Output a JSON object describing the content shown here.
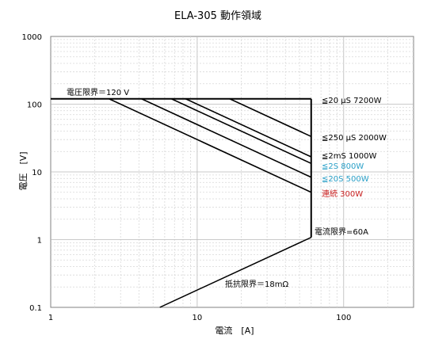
{
  "chart_data": {
    "type": "line",
    "title": "ELA-305 動作領域",
    "xlabel": "電流　[A]",
    "ylabel": "電圧　[V]",
    "x_scale": "log",
    "y_scale": "log",
    "xlim": [
      1,
      300
    ],
    "ylim": [
      0.1,
      1000
    ],
    "x_ticks": [
      "1",
      "10",
      "100"
    ],
    "y_ticks": [
      "0.1",
      "1",
      "10",
      "100",
      "1000"
    ],
    "grid": true,
    "limits": {
      "voltage": 120,
      "current": 60,
      "resistance": 0.018
    },
    "series": [
      {
        "name": "≦20 μS 7200W",
        "power": 7200,
        "color": "#000000"
      },
      {
        "name": "≦250 μS 2000W",
        "power": 2000,
        "color": "#000000"
      },
      {
        "name": "≦2mS 1000W",
        "power": 1000,
        "color": "#000000"
      },
      {
        "name": "≦2S 800W",
        "power": 800,
        "color": "#2aa0c8"
      },
      {
        "name": "≦20S 500W",
        "power": 500,
        "color": "#2aa0c8"
      },
      {
        "name": "連続 300W",
        "power": 300,
        "color": "#c81e1e"
      }
    ],
    "annotations": {
      "voltage_limit": "電圧限界＝120 V",
      "current_limit": "電流限界=60A",
      "resistance_limit": "抵抗限界＝18mΩ"
    }
  }
}
